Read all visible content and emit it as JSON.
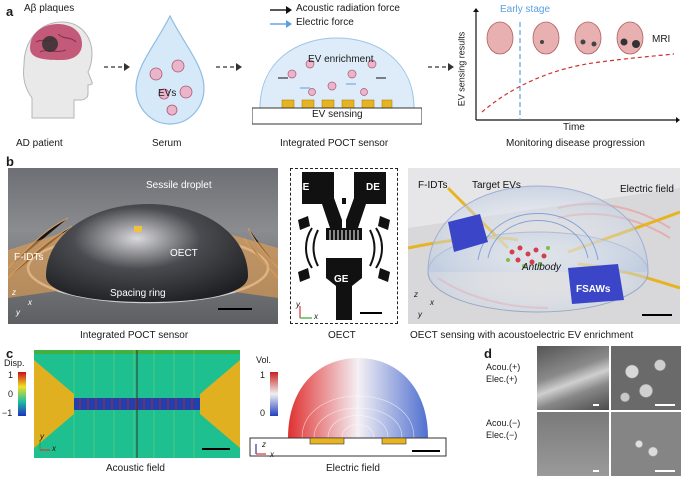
{
  "panel_a": {
    "letter": "a",
    "abeta_label": "Aβ plaques",
    "ad_patient_label": "AD patient",
    "serum_label": "Serum",
    "evs_label": "EVs",
    "legend_acoustic": "Acoustic radiation force",
    "legend_electric": "Electric force",
    "ev_enrichment_label": "EV enrichment",
    "ev_sensing_label": "EV sensing",
    "poct_label": "Integrated POCT sensor",
    "early_stage_label": "Early stage",
    "mri_label": "MRI",
    "ylabel": "EV sensing results",
    "xlabel": "Time",
    "monitoring_label": "Monitoring disease progression",
    "colors": {
      "acoustic_arrow": "#111111",
      "electric_arrow": "#5aa0e0",
      "early_stage_line": "#5aa0e0",
      "trend_curve": "#d03030",
      "droplet": "#cfe3f5",
      "electrode": "#e6b422"
    }
  },
  "panel_b": {
    "letter": "b",
    "photo1_labels": {
      "sessile": "Sessile droplet",
      "oect": "OECT",
      "fidts": "F-IDTs",
      "spacing": "Spacing ring",
      "ax_z": "z",
      "ax_x": "x",
      "ax_y": "y"
    },
    "photo1_caption": "Integrated POCT sensor",
    "oect_labels": {
      "se": "SE",
      "de": "DE",
      "ge": "GE",
      "ax_y": "y",
      "ax_x": "x"
    },
    "oect_caption": "OECT",
    "render_labels": {
      "fidts": "F-IDTs",
      "target": "Target EVs",
      "efield": "Electric field",
      "antibody": "Antibody",
      "fsaws": "FSAWs",
      "ax_z": "z",
      "ax_x": "x",
      "ax_y": "y"
    },
    "render_caption": "OECT sensing with acoustoelectric EV enrichment"
  },
  "panel_c": {
    "letter": "c",
    "disp_title": "Disp.",
    "disp_ticks": [
      "1",
      "0",
      "−1"
    ],
    "acoustic_caption": "Acoustic field",
    "vol_title": "Vol.",
    "vol_ticks": [
      "1",
      "0"
    ],
    "electric_caption": "Electric field",
    "ax_y": "y",
    "ax_x": "x",
    "ax_z": "z"
  },
  "panel_d": {
    "letter": "d",
    "top_label_1": "Acou.(+)",
    "top_label_2": "Elec.(+)",
    "bottom_label_1": "Acou.(−)",
    "bottom_label_2": "Elec.(−)"
  }
}
